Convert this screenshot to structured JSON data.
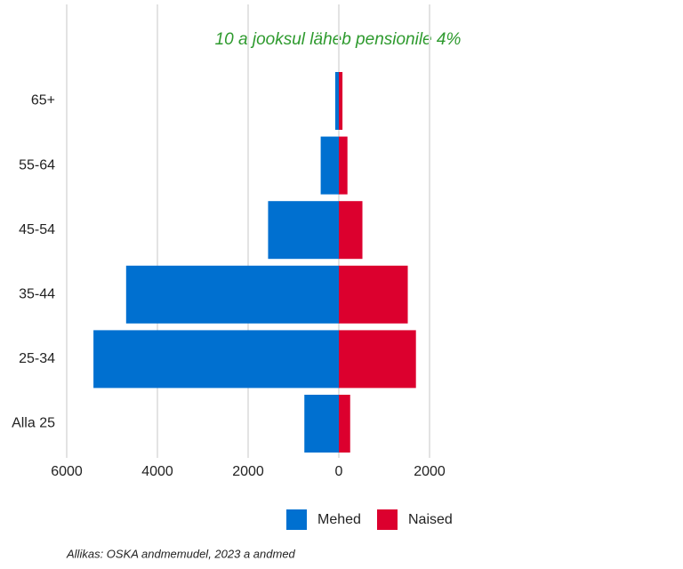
{
  "chart_data": {
    "type": "pyramid",
    "title": "10 a jooksul läheb pensionile 4%",
    "source": "Allikas: OSKA andmemudel, 2023 a andmed",
    "categories": [
      "65+",
      "55-64",
      "45-54",
      "35-44",
      "25-34",
      "Alla 25"
    ],
    "series": [
      {
        "name": "Mehed",
        "color": "#0070d0",
        "values": [
          -80,
          -400,
          -1560,
          -4690,
          -5410,
          -760
        ]
      },
      {
        "name": "Naised",
        "color": "#dc002e",
        "values": [
          80,
          190,
          520,
          1520,
          1700,
          250
        ]
      }
    ],
    "xlim": [
      -6000,
      2000
    ],
    "xticks": [
      {
        "value": -6000,
        "label": "6000"
      },
      {
        "value": -4000,
        "label": "4000"
      },
      {
        "value": -2000,
        "label": "2000"
      },
      0,
      2000
    ],
    "grid": true,
    "legend": "bottom",
    "title_color": "#2e9a2e"
  }
}
